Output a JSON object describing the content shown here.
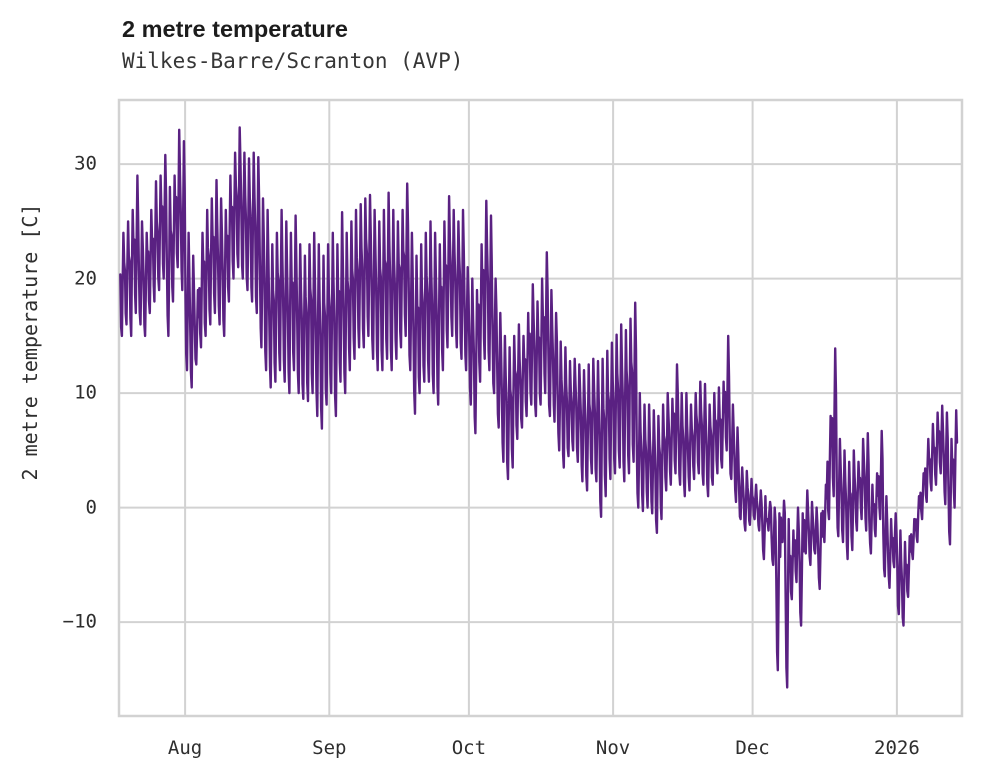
{
  "header": {
    "title": "2 metre temperature",
    "subtitle": "Wilkes-Barre/Scranton (AVP)"
  },
  "axes": {
    "y_label": "2 metre temperature [C]",
    "y_ticks": [
      {
        "label": "30",
        "value": 30
      },
      {
        "label": "20",
        "value": 20
      },
      {
        "label": "10",
        "value": 10
      },
      {
        "label": "0",
        "value": 0
      },
      {
        "label": "−10",
        "value": -10
      }
    ],
    "x_ticks": [
      {
        "label": "Aug",
        "day": 14
      },
      {
        "label": "Sep",
        "day": 45
      },
      {
        "label": "Oct",
        "day": 75
      },
      {
        "label": "Nov",
        "day": 106
      },
      {
        "label": "Dec",
        "day": 136
      },
      {
        "label": "2026",
        "day": 167
      }
    ]
  },
  "style": {
    "line_color": "#5a2182",
    "grid_color": "#d2d2d2",
    "background": "#ffffff",
    "title_color": "#1c1c1c",
    "tick_color": "#2e2e2e"
  },
  "chart_data": {
    "type": "line",
    "title": "2 metre temperature",
    "subtitle": "Wilkes-Barre/Scranton (AVP)",
    "ylabel": "2 metre temperature [C]",
    "ylim": [
      -18.2,
      35.6
    ],
    "xlim_days": [
      -0.2,
      181
    ],
    "grid": true,
    "legend": "none",
    "x_axis": "time, Jul 18 (day 0) through Jan 13 (day 179); month gridlines at Aug, Sep, Oct, Nov, Dec, 2026(Jan)",
    "sampling_note": "hourly trace summarized as estimated daily [high, low] in °C",
    "days": [
      [
        24,
        15
      ],
      [
        25,
        16
      ],
      [
        26,
        15
      ],
      [
        29,
        17
      ],
      [
        25,
        16
      ],
      [
        24,
        15
      ],
      [
        26,
        17
      ],
      [
        28.5,
        18
      ],
      [
        29,
        19
      ],
      [
        30.8,
        20
      ],
      [
        28,
        15
      ],
      [
        29,
        18
      ],
      [
        33,
        21
      ],
      [
        32,
        19
      ],
      [
        24,
        12
      ],
      [
        22,
        10.5
      ],
      [
        19,
        12.5
      ],
      [
        24,
        14
      ],
      [
        26,
        15
      ],
      [
        27,
        16
      ],
      [
        28.6,
        17
      ],
      [
        27,
        16
      ],
      [
        26,
        15
      ],
      [
        29,
        18
      ],
      [
        31,
        20
      ],
      [
        33.2,
        21
      ],
      [
        31,
        20
      ],
      [
        30.5,
        19
      ],
      [
        31,
        18
      ],
      [
        30.6,
        17
      ],
      [
        27,
        14
      ],
      [
        26,
        12
      ],
      [
        23,
        10.5
      ],
      [
        24,
        11
      ],
      [
        26,
        12
      ],
      [
        25,
        11
      ],
      [
        24,
        10
      ],
      [
        25.5,
        12
      ],
      [
        23,
        10
      ],
      [
        22,
        9.5
      ],
      [
        23,
        9.3
      ],
      [
        24,
        10
      ],
      [
        23,
        8
      ],
      [
        22,
        6.9
      ],
      [
        23,
        9
      ],
      [
        24,
        10
      ],
      [
        23,
        8
      ],
      [
        25.8,
        11
      ],
      [
        24,
        10
      ],
      [
        25,
        12
      ],
      [
        26,
        13
      ],
      [
        26.5,
        14
      ],
      [
        27,
        14
      ],
      [
        27.3,
        15
      ],
      [
        26,
        13
      ],
      [
        25,
        12
      ],
      [
        26,
        12
      ],
      [
        27.5,
        13
      ],
      [
        26,
        12
      ],
      [
        25,
        13
      ],
      [
        26,
        14
      ],
      [
        28.3,
        15
      ],
      [
        24,
        12
      ],
      [
        22,
        8.2
      ],
      [
        23,
        10
      ],
      [
        24,
        11
      ],
      [
        25,
        11
      ],
      [
        24,
        10
      ],
      [
        23,
        9
      ],
      [
        25,
        12
      ],
      [
        27.2,
        14
      ],
      [
        26,
        15
      ],
      [
        25,
        14
      ],
      [
        26,
        13
      ],
      [
        21,
        12
      ],
      [
        20,
        9
      ],
      [
        19,
        6.5
      ],
      [
        23,
        11
      ],
      [
        26.8,
        13
      ],
      [
        25.5,
        12
      ],
      [
        20,
        10
      ],
      [
        17,
        7
      ],
      [
        15,
        4
      ],
      [
        14,
        2.5
      ],
      [
        15,
        3.5
      ],
      [
        16,
        6
      ],
      [
        15,
        7
      ],
      [
        17,
        8
      ],
      [
        19.5,
        9
      ],
      [
        18,
        8
      ],
      [
        20,
        9
      ],
      [
        22.3,
        10
      ],
      [
        19,
        8
      ],
      [
        17,
        7.5
      ],
      [
        14.5,
        5
      ],
      [
        14,
        3.5
      ],
      [
        12.8,
        4.5
      ],
      [
        13,
        5
      ],
      [
        12.5,
        4
      ],
      [
        12,
        2.3
      ],
      [
        12.5,
        1.5
      ],
      [
        13,
        3
      ],
      [
        12.8,
        2.3
      ],
      [
        13,
        -0.8
      ],
      [
        13.7,
        1
      ],
      [
        14.4,
        2.5
      ],
      [
        15.1,
        3
      ],
      [
        16,
        3.5
      ],
      [
        15.5,
        2.3
      ],
      [
        16.5,
        3
      ],
      [
        17.9,
        4
      ],
      [
        10,
        0
      ],
      [
        9,
        -0.3
      ],
      [
        9,
        0
      ],
      [
        8.5,
        -0.5
      ],
      [
        8,
        -2.2
      ],
      [
        9,
        -1
      ],
      [
        10,
        1.5
      ],
      [
        9.5,
        2
      ],
      [
        12.5,
        3
      ],
      [
        10,
        2
      ],
      [
        10,
        1
      ],
      [
        9,
        1.5
      ],
      [
        10,
        2.5
      ],
      [
        11,
        3
      ],
      [
        10.8,
        2
      ],
      [
        9,
        1
      ],
      [
        10,
        2
      ],
      [
        10.5,
        3
      ],
      [
        11,
        3.5
      ],
      [
        15,
        5
      ],
      [
        9,
        2.5
      ],
      [
        7,
        0.5
      ],
      [
        3.5,
        -1
      ],
      [
        3.2,
        -2
      ],
      [
        2.5,
        -1.5
      ],
      [
        2,
        -1
      ],
      [
        1.5,
        -2
      ],
      [
        1,
        -4.5
      ],
      [
        0.5,
        -2
      ],
      [
        0,
        -5
      ],
      [
        -0.5,
        -14.2
      ],
      [
        0.6,
        -3
      ],
      [
        -1,
        -15.7
      ],
      [
        -2,
        -8
      ],
      [
        0,
        -6.5
      ],
      [
        -0.5,
        -10.3
      ],
      [
        1.5,
        -4
      ],
      [
        0.5,
        -5
      ],
      [
        0,
        -4
      ],
      [
        -0.5,
        -7.1
      ],
      [
        2,
        -3
      ],
      [
        8,
        -1
      ],
      [
        13.9,
        1
      ],
      [
        6,
        -2.5
      ],
      [
        5,
        -3
      ],
      [
        4,
        -4.5
      ],
      [
        5,
        -3.7
      ],
      [
        4,
        -2
      ],
      [
        6,
        -1
      ],
      [
        6.5,
        -2
      ],
      [
        2,
        -4
      ],
      [
        3,
        -2.5
      ],
      [
        6.7,
        -1
      ],
      [
        1,
        -6
      ],
      [
        -1,
        -7
      ],
      [
        -0.5,
        -5.2
      ],
      [
        -2,
        -9.3
      ],
      [
        -3,
        -10.3
      ],
      [
        -2.5,
        -7.8
      ],
      [
        -1,
        -4.5
      ],
      [
        1,
        -3
      ],
      [
        3,
        -1
      ],
      [
        6,
        0.5
      ],
      [
        7.3,
        1.5
      ],
      [
        8.3,
        2
      ],
      [
        8.9,
        3
      ],
      [
        8.3,
        0.3
      ],
      [
        6,
        -3.2
      ],
      [
        8.5,
        0
      ]
    ]
  }
}
